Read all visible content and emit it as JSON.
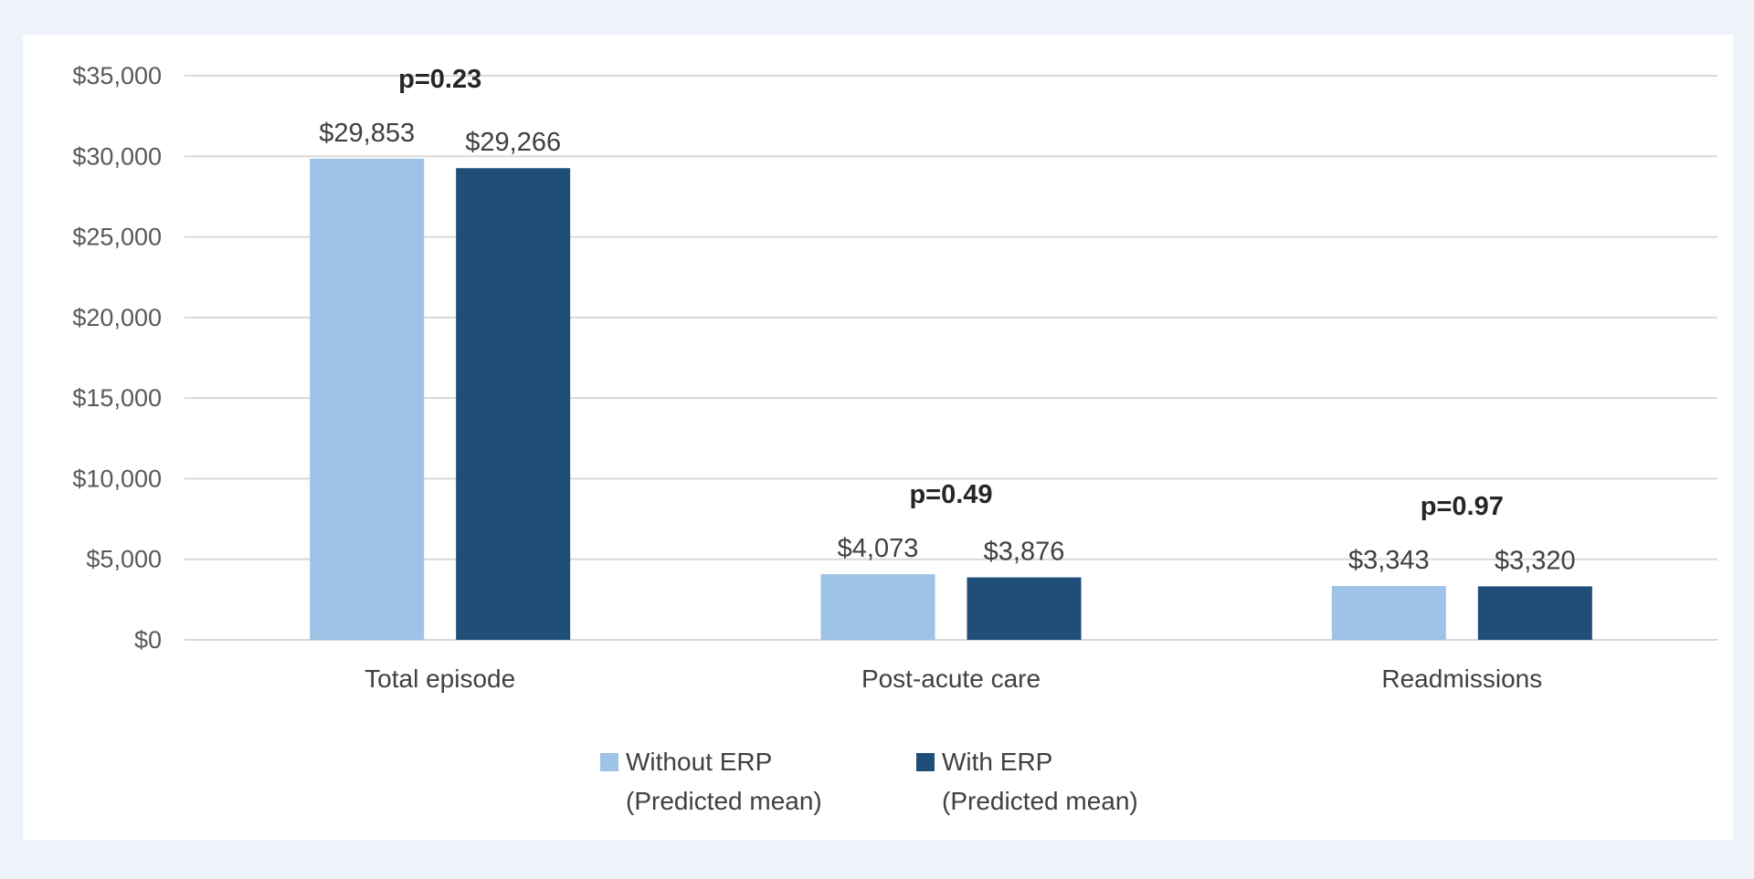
{
  "chart_data": {
    "type": "bar",
    "title": "",
    "xlabel": "",
    "ylabel": "",
    "ylim": [
      0,
      35000
    ],
    "yticks": [
      0,
      5000,
      10000,
      15000,
      20000,
      25000,
      30000,
      35000
    ],
    "ytick_labels": [
      "$0",
      "$5,000",
      "$10,000",
      "$15,000",
      "$20,000",
      "$25,000",
      "$30,000",
      "$35,000"
    ],
    "grid": true,
    "legend_position": "bottom",
    "categories": [
      "Total episode",
      "Post-acute care",
      "Readmissions"
    ],
    "series": [
      {
        "name": "Without ERP (Predicted mean)",
        "legend_lines": [
          "Without ERP",
          "(Predicted mean)"
        ],
        "color": "#9dc3e6",
        "values": [
          29853,
          4073,
          3343
        ],
        "labels": [
          "$29,853",
          "$4,073",
          "$3,343"
        ]
      },
      {
        "name": "With ERP (Predicted mean)",
        "legend_lines": [
          "With ERP",
          "(Predicted mean)"
        ],
        "color": "#1f4e79",
        "values": [
          29266,
          3876,
          3320
        ],
        "labels": [
          "$29,266",
          "$3,876",
          "$3,320"
        ]
      }
    ],
    "annotations": [
      "p=0.23",
      "p=0.49",
      "p=0.97"
    ]
  }
}
